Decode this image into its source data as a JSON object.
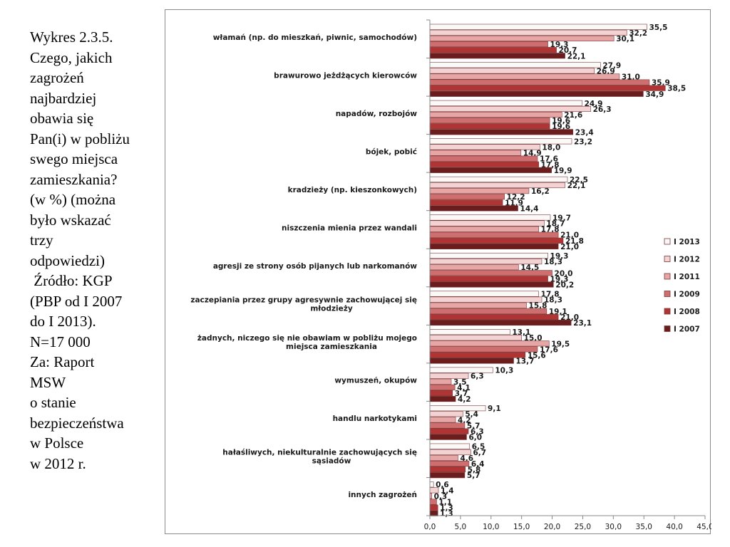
{
  "caption": {
    "lines": [
      "Wykres 2.3.5.",
      "Czego, jakich",
      "zagrożeń",
      "najbardziej",
      "obawia się",
      "Pan(i) w pobliżu",
      "swego miejsca",
      "zamieszkania?",
      "(w %) (można",
      "było wskazać",
      "trzy",
      "odpowiedzi)",
      " Źródło: KGP",
      "(PBP od I 2007",
      "do I 2013).",
      "N=17 000",
      "Za: Raport",
      "MSW",
      "o stanie",
      "bezpieczeństwa",
      "w Polsce",
      "w 2012 r."
    ]
  },
  "chart_data": {
    "type": "bar",
    "orientation": "horizontal",
    "xlim": [
      0,
      45
    ],
    "x_ticks": [
      "0,0",
      "5,0",
      "10,0",
      "15,0",
      "20,0",
      "25,0",
      "30,0",
      "35,0",
      "40,0",
      "45,0"
    ],
    "grid": false,
    "legend_position": "right",
    "categories": [
      [
        "włamań (np. do mieszkań, piwnic, samochodów)"
      ],
      [
        "brawurowo jeżdżących kierowców"
      ],
      [
        "napadów, rozbojów"
      ],
      [
        "bójek, pobić"
      ],
      [
        "kradzieży (np. kieszonkowych)"
      ],
      [
        "niszczenia mienia przez wandali"
      ],
      [
        "agresji ze strony osób pijanych lub narkomanów"
      ],
      [
        "zaczepiania przez grupy agresywnie zachowującej się",
        "młodzieży"
      ],
      [
        "żadnych, niczego się nie obawiam w pobliżu mojego",
        "miejsca zamieszkania"
      ],
      [
        "wymuszeń, okupów"
      ],
      [
        "handlu narkotykami"
      ],
      [
        "hałaśliwych, niekulturalnie zachowujących się",
        "sąsiadów"
      ],
      [
        "innych zagrożeń"
      ]
    ],
    "series": [
      {
        "name": "I 2013",
        "color": "#fbf8f8",
        "values": [
          35.5,
          27.9,
          24.9,
          23.2,
          22.5,
          19.7,
          19.3,
          17.8,
          13.1,
          10.3,
          9.1,
          6.5,
          0.6
        ]
      },
      {
        "name": "I 2012",
        "color": "#f2d2d2",
        "values": [
          32.2,
          26.9,
          26.3,
          18.0,
          22.1,
          18.7,
          18.3,
          18.3,
          15.0,
          6.3,
          5.4,
          6.7,
          1.4
        ]
      },
      {
        "name": "I 2011",
        "color": "#e6a6a6",
        "values": [
          30.1,
          31.0,
          21.6,
          14.9,
          16.2,
          17.8,
          14.5,
          15.8,
          19.5,
          3.5,
          4.2,
          4.6,
          0.3
        ]
      },
      {
        "name": "I 2009",
        "color": "#cf6e6e",
        "values": [
          19.3,
          35.9,
          19.6,
          17.6,
          12.2,
          21.0,
          20.0,
          19.1,
          17.6,
          4.1,
          5.7,
          6.4,
          1.1
        ]
      },
      {
        "name": "I 2008",
        "color": "#b03434",
        "values": [
          20.7,
          38.5,
          19.6,
          17.8,
          11.9,
          21.8,
          19.3,
          21.0,
          15.6,
          3.7,
          6.3,
          5.8,
          1.3
        ]
      },
      {
        "name": "I 2007",
        "color": "#6b1d1d",
        "values": [
          22.1,
          34.9,
          23.4,
          19.9,
          14.4,
          21.0,
          20.2,
          23.1,
          13.7,
          4.2,
          6.0,
          5.7,
          1.3
        ]
      }
    ]
  }
}
